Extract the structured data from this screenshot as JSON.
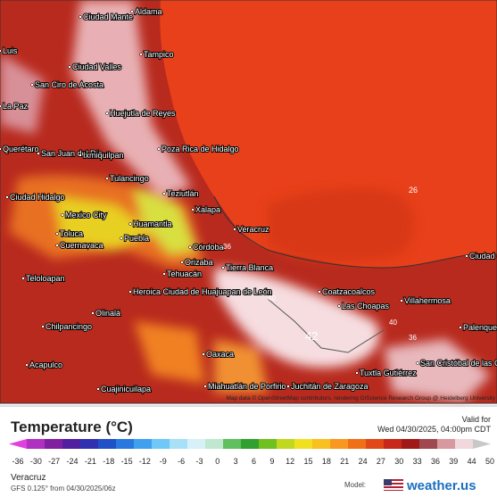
{
  "map": {
    "cities": [
      "Aldama",
      "Ciudad Mante",
      "Tampico",
      "Luis",
      "Ciudad Valles",
      "San Ciro de Acosta",
      "La Paz",
      "Huejutla de Reyes",
      "Querétaro",
      "San Juan del Río",
      "Ixmiquilpan",
      "Poza Rica de Hidalgo",
      "Tulancingo",
      "Teziutlán",
      "Ciudad Hidalgo",
      "Mexico City",
      "Huamantla",
      "Xalapa",
      "Veracruz",
      "Toluca",
      "Puebla",
      "Cuernavaca",
      "Córdoba",
      "Orizaba",
      "Tehuacán",
      "Tierra Blanca",
      "Teloloapan",
      "Heroica Ciudad de Huajuapan de León",
      "Coatzacoalcos",
      "Las Choapas",
      "Villahermosa",
      "Olinalá",
      "Chilpancingo",
      "Oaxaca",
      "Acapulco",
      "Tuxtla Gutiérrez",
      "San Cristóbal de las Casas",
      "Miahuatlán de Porfirio",
      "Juchitán de Zaragoza",
      "Cuajinicuilapa",
      "Palenque",
      "Ciudad del Carmen"
    ],
    "contours": [
      "26",
      "36",
      "40",
      "42",
      "36",
      "40"
    ],
    "attribution": "Map data © OpenStreetMap contributors, rendering GIScience Research Group @ Heidelberg University"
  },
  "legend": {
    "title": "Temperature (°C)",
    "valid_label": "Valid for",
    "valid_time": "Wed 04/30/2025, 04:00pm CDT",
    "ticks": [
      -36,
      -30,
      -27,
      -24,
      -21,
      -18,
      -15,
      -12,
      -9,
      -6,
      -3,
      0,
      3,
      6,
      9,
      12,
      15,
      18,
      21,
      24,
      27,
      30,
      33,
      36,
      39,
      44,
      50
    ],
    "colors": [
      "#e040e0",
      "#b030c0",
      "#8020a0",
      "#5020a0",
      "#3030b0",
      "#2050c8",
      "#2878e0",
      "#40a0f0",
      "#70c8f8",
      "#a8e0f8",
      "#d8f0f8",
      "#c0e8d0",
      "#60c060",
      "#30a030",
      "#70c020",
      "#c0d820",
      "#f0e020",
      "#f8c020",
      "#f89820",
      "#f07018",
      "#e04818",
      "#c82818",
      "#a01818",
      "#a04850",
      "#d898a0",
      "#f0d8dc",
      "#c8c8c8"
    ],
    "location": "Veracruz",
    "model_run": "GFS 0.125° from 04/30/2025/06z",
    "model_label": "Model:",
    "brand": "weather.us"
  }
}
